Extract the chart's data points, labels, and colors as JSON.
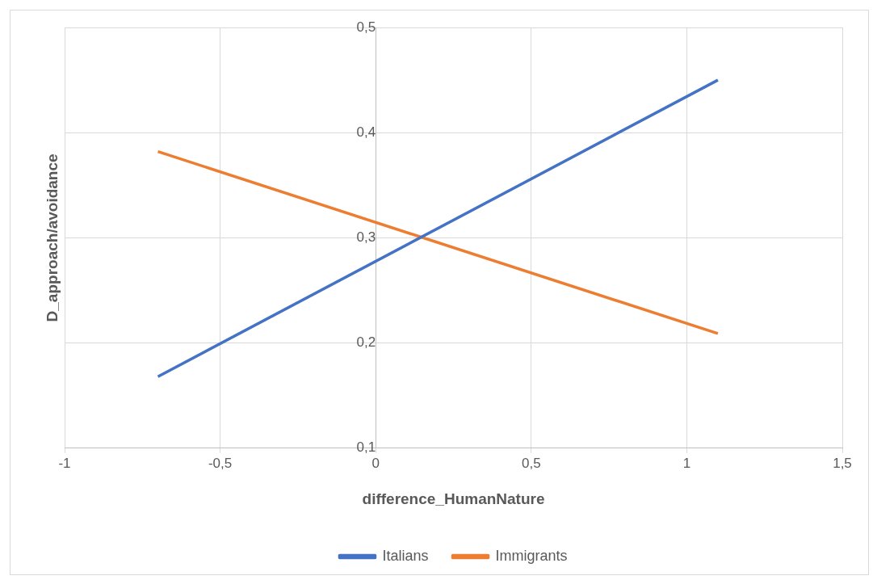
{
  "chart_data": {
    "type": "line",
    "xlabel": "difference_HumanNature",
    "ylabel": "D_approach/avoidance",
    "x": [
      -0.7,
      1.1
    ],
    "series": [
      {
        "name": "Italians",
        "color": "#4472c4",
        "values": [
          0.168,
          0.45
        ]
      },
      {
        "name": "Immigrants",
        "color": "#ed7d31",
        "values": [
          0.382,
          0.209
        ]
      }
    ],
    "xlim": [
      -1,
      1.5
    ],
    "xticks": [
      -1,
      {
        "value": -0.5,
        "label": "-0,5"
      },
      0,
      {
        "value": 0.5,
        "label": "0,5"
      },
      1,
      {
        "value": 1.5,
        "label": "1,5"
      }
    ],
    "ylim": [
      0.1,
      0.5
    ],
    "yticks": [
      {
        "value": 0.1,
        "label": "0,1"
      },
      {
        "value": 0.2,
        "label": "0,2"
      },
      {
        "value": 0.3,
        "label": "0,3"
      },
      {
        "value": 0.4,
        "label": "0,4"
      },
      {
        "value": 0.5,
        "label": "0,5"
      }
    ],
    "grid": true,
    "legend": "bottom",
    "marker": "none",
    "line_style": "solid"
  }
}
